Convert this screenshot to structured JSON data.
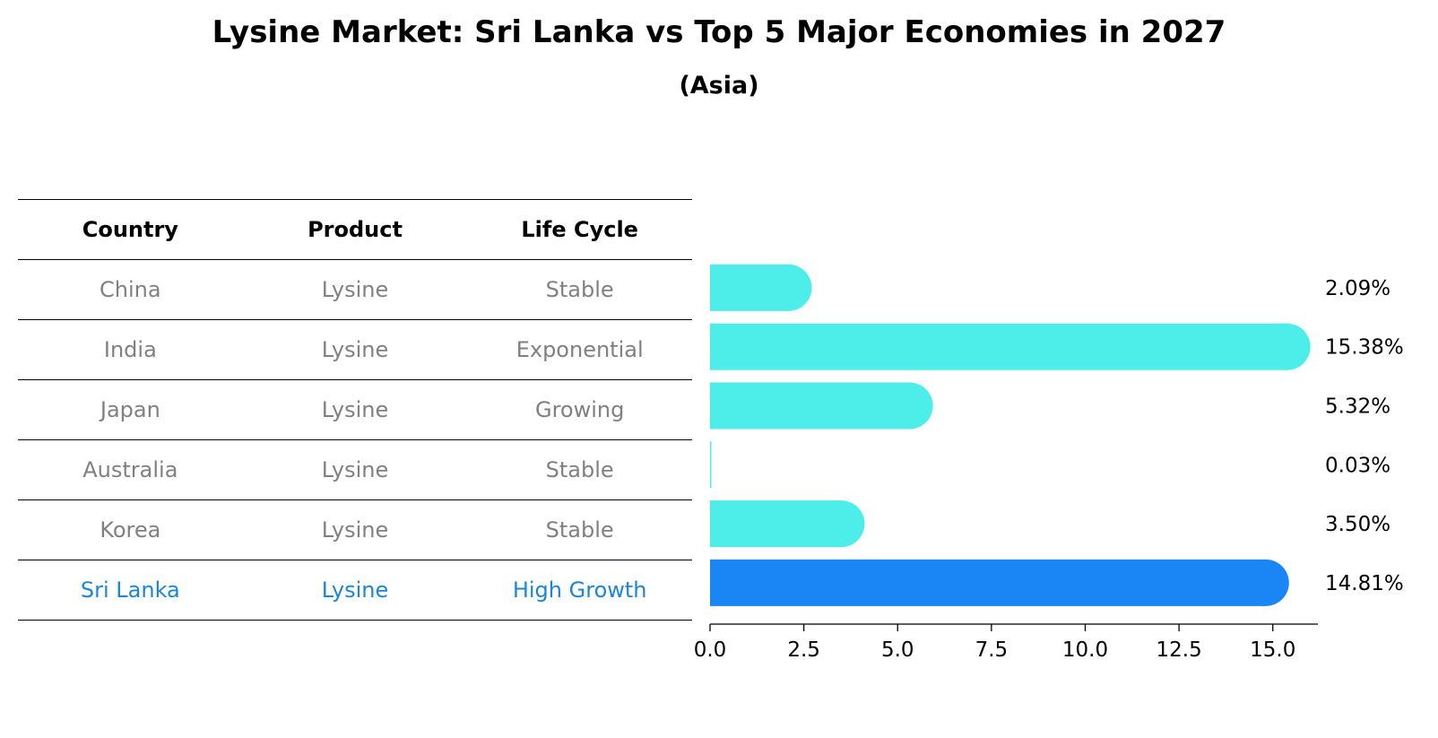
{
  "header": {
    "title": "Lysine Market: Sri Lanka vs Top 5 Major Economies in 2027",
    "subtitle": "(Asia)"
  },
  "table": {
    "columns": [
      "Country",
      "Product",
      "Life Cycle"
    ],
    "rows": [
      {
        "country": "China",
        "product": "Lysine",
        "life_cycle": "Stable"
      },
      {
        "country": "India",
        "product": "Lysine",
        "life_cycle": "Exponential"
      },
      {
        "country": "Japan",
        "product": "Lysine",
        "life_cycle": "Growing"
      },
      {
        "country": "Australia",
        "product": "Lysine",
        "life_cycle": "Stable"
      },
      {
        "country": "Korea",
        "product": "Lysine",
        "life_cycle": "Stable"
      },
      {
        "country": "Sri Lanka",
        "product": "Lysine",
        "life_cycle": "High Growth"
      }
    ]
  },
  "colors": {
    "bar": "#4deee9",
    "highlight_bar": "#1a86f5",
    "highlight_text": "#1a86d8",
    "muted_text": "#808080"
  },
  "chart_data": {
    "type": "bar",
    "orientation": "horizontal",
    "categories": [
      "China",
      "India",
      "Japan",
      "Australia",
      "Korea",
      "Sri Lanka"
    ],
    "values": [
      2.09,
      15.38,
      5.32,
      0.03,
      3.5,
      14.81
    ],
    "value_labels": [
      "2.09%",
      "15.38%",
      "5.32%",
      "0.03%",
      "3.50%",
      "14.81%"
    ],
    "highlight": "Sri Lanka",
    "xlim": [
      0,
      16.2
    ],
    "xticks": [
      0,
      2.5,
      5,
      7.5,
      10,
      12.5,
      15
    ],
    "xtick_labels": [
      "0.0",
      "2.5",
      "5.0",
      "7.5",
      "10.0",
      "12.5",
      "15.0"
    ],
    "title": "Lysine Market: Sri Lanka vs Top 5 Major Economies in 2027",
    "xlabel": "",
    "ylabel": ""
  }
}
